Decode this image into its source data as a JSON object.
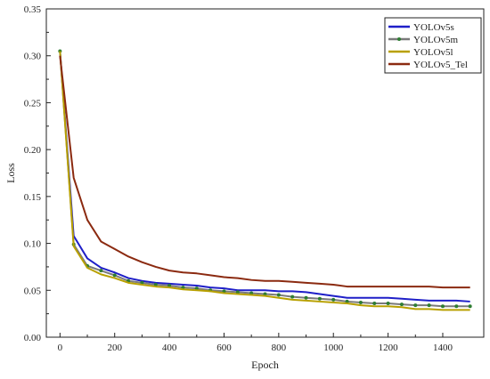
{
  "chart_data": {
    "type": "line",
    "title": "",
    "xlabel": "Epoch",
    "ylabel": "Loss",
    "xlim": [
      -50,
      1550
    ],
    "ylim": [
      0.0,
      0.35
    ],
    "xticks": [
      0,
      200,
      400,
      600,
      800,
      1000,
      1200,
      1400
    ],
    "yticks": [
      0.0,
      0.05,
      0.1,
      0.15,
      0.2,
      0.25,
      0.3,
      0.35
    ],
    "xtick_labels": [
      "0",
      "200",
      "400",
      "600",
      "800",
      "1000",
      "1200",
      "1400"
    ],
    "ytick_labels": [
      "0.00",
      "0.05",
      "0.10",
      "0.15",
      "0.20",
      "0.25",
      "0.30",
      "0.35"
    ],
    "grid": false,
    "legend_position": "top-right",
    "x": [
      0,
      50,
      100,
      150,
      200,
      250,
      300,
      350,
      400,
      450,
      500,
      550,
      600,
      650,
      700,
      750,
      800,
      850,
      900,
      950,
      1000,
      1050,
      1100,
      1150,
      1200,
      1250,
      1300,
      1350,
      1400,
      1450,
      1500
    ],
    "series": [
      {
        "name": "YOLOv5s",
        "color": "#1f1fc8",
        "marker": "none",
        "values": [
          0.305,
          0.108,
          0.084,
          0.074,
          0.069,
          0.063,
          0.06,
          0.058,
          0.057,
          0.056,
          0.055,
          0.053,
          0.052,
          0.05,
          0.05,
          0.05,
          0.049,
          0.049,
          0.048,
          0.046,
          0.044,
          0.042,
          0.042,
          0.042,
          0.042,
          0.041,
          0.04,
          0.039,
          0.039,
          0.039,
          0.038
        ]
      },
      {
        "name": "YOLOv5m",
        "color": "#7a7a7a",
        "marker": "dot",
        "values": [
          0.305,
          0.099,
          0.076,
          0.071,
          0.066,
          0.06,
          0.058,
          0.056,
          0.055,
          0.053,
          0.052,
          0.05,
          0.049,
          0.048,
          0.047,
          0.046,
          0.045,
          0.043,
          0.042,
          0.041,
          0.04,
          0.038,
          0.037,
          0.036,
          0.036,
          0.035,
          0.034,
          0.034,
          0.033,
          0.033,
          0.033
        ]
      },
      {
        "name": "YOLOv5l",
        "color": "#b8a000",
        "marker": "none",
        "values": [
          0.305,
          0.097,
          0.074,
          0.067,
          0.063,
          0.058,
          0.056,
          0.054,
          0.053,
          0.051,
          0.05,
          0.049,
          0.047,
          0.046,
          0.045,
          0.044,
          0.042,
          0.04,
          0.039,
          0.038,
          0.037,
          0.036,
          0.034,
          0.033,
          0.033,
          0.032,
          0.03,
          0.03,
          0.029,
          0.029,
          0.029
        ]
      },
      {
        "name": "YOLOv5_Tel",
        "color": "#8b2a10",
        "marker": "none",
        "values": [
          0.3,
          0.17,
          0.125,
          0.102,
          0.094,
          0.086,
          0.08,
          0.075,
          0.071,
          0.069,
          0.068,
          0.066,
          0.064,
          0.063,
          0.061,
          0.06,
          0.06,
          0.059,
          0.058,
          0.057,
          0.056,
          0.054,
          0.054,
          0.054,
          0.054,
          0.054,
          0.054,
          0.054,
          0.053,
          0.053,
          0.053
        ]
      }
    ]
  }
}
